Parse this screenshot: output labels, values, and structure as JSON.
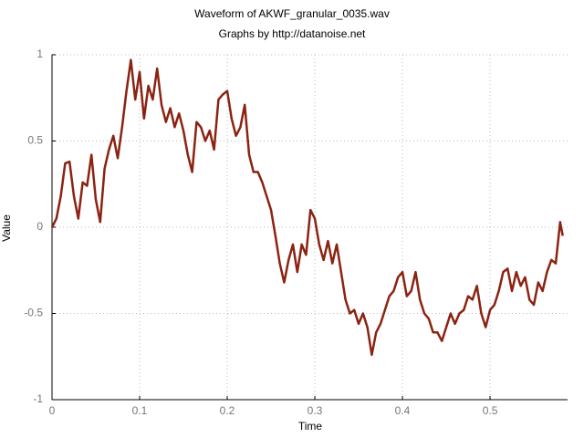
{
  "chart_data": {
    "type": "line",
    "title": "Waveform of AKWF_granular_0035.wav",
    "subtitle": "Graphs by http://datanoise.net",
    "x_label": "Time",
    "y_label": "Value",
    "color": "#8b2312",
    "grid": true,
    "xlim": [
      0,
      0.5885
    ],
    "ylim": [
      -1,
      1
    ],
    "xticks": [
      0,
      0.1,
      0.2,
      0.3,
      0.4,
      0.5
    ],
    "yticks": [
      -1,
      -0.5,
      0,
      0.5,
      1
    ],
    "x": [
      0,
      0.005,
      0.01,
      0.015,
      0.02,
      0.025,
      0.03,
      0.035,
      0.04,
      0.045,
      0.05,
      0.055,
      0.06,
      0.065,
      0.07,
      0.075,
      0.08,
      0.085,
      0.09,
      0.095,
      0.1,
      0.105,
      0.11,
      0.115,
      0.12,
      0.125,
      0.13,
      0.135,
      0.14,
      0.145,
      0.15,
      0.155,
      0.16,
      0.165,
      0.17,
      0.175,
      0.18,
      0.185,
      0.19,
      0.195,
      0.2,
      0.205,
      0.21,
      0.215,
      0.22,
      0.225,
      0.23,
      0.235,
      0.24,
      0.245,
      0.25,
      0.255,
      0.26,
      0.265,
      0.27,
      0.275,
      0.28,
      0.285,
      0.29,
      0.295,
      0.3,
      0.305,
      0.31,
      0.315,
      0.32,
      0.325,
      0.33,
      0.335,
      0.34,
      0.345,
      0.35,
      0.355,
      0.36,
      0.365,
      0.37,
      0.375,
      0.38,
      0.385,
      0.39,
      0.395,
      0.4,
      0.405,
      0.41,
      0.415,
      0.42,
      0.425,
      0.43,
      0.435,
      0.44,
      0.445,
      0.45,
      0.455,
      0.46,
      0.465,
      0.47,
      0.475,
      0.48,
      0.485,
      0.49,
      0.495,
      0.5,
      0.505,
      0.51,
      0.515,
      0.52,
      0.525,
      0.53,
      0.535,
      0.54,
      0.545,
      0.55,
      0.555,
      0.56,
      0.565,
      0.57,
      0.575,
      0.58,
      0.583
    ],
    "values": [
      0,
      0.05,
      0.18,
      0.37,
      0.38,
      0.18,
      0.05,
      0.26,
      0.24,
      0.42,
      0.16,
      0.03,
      0.34,
      0.45,
      0.53,
      0.4,
      0.58,
      0.79,
      0.97,
      0.74,
      0.9,
      0.63,
      0.82,
      0.74,
      0.92,
      0.71,
      0.61,
      0.69,
      0.58,
      0.66,
      0.56,
      0.42,
      0.32,
      0.61,
      0.58,
      0.5,
      0.56,
      0.45,
      0.74,
      0.77,
      0.79,
      0.63,
      0.53,
      0.58,
      0.71,
      0.42,
      0.32,
      0.32,
      0.26,
      0.18,
      0.1,
      -0.05,
      -0.21,
      -0.32,
      -0.19,
      -0.1,
      -0.26,
      -0.1,
      -0.16,
      0.1,
      0.05,
      -0.1,
      -0.19,
      -0.08,
      -0.21,
      -0.1,
      -0.26,
      -0.42,
      -0.5,
      -0.48,
      -0.56,
      -0.5,
      -0.58,
      -0.74,
      -0.61,
      -0.56,
      -0.48,
      -0.4,
      -0.37,
      -0.29,
      -0.26,
      -0.4,
      -0.37,
      -0.26,
      -0.42,
      -0.5,
      -0.53,
      -0.61,
      -0.61,
      -0.66,
      -0.58,
      -0.5,
      -0.56,
      -0.5,
      -0.48,
      -0.4,
      -0.42,
      -0.34,
      -0.5,
      -0.58,
      -0.48,
      -0.45,
      -0.37,
      -0.26,
      -0.24,
      -0.37,
      -0.26,
      -0.34,
      -0.29,
      -0.42,
      -0.45,
      -0.32,
      -0.37,
      -0.26,
      -0.19,
      -0.21,
      0.03,
      -0.05
    ]
  }
}
